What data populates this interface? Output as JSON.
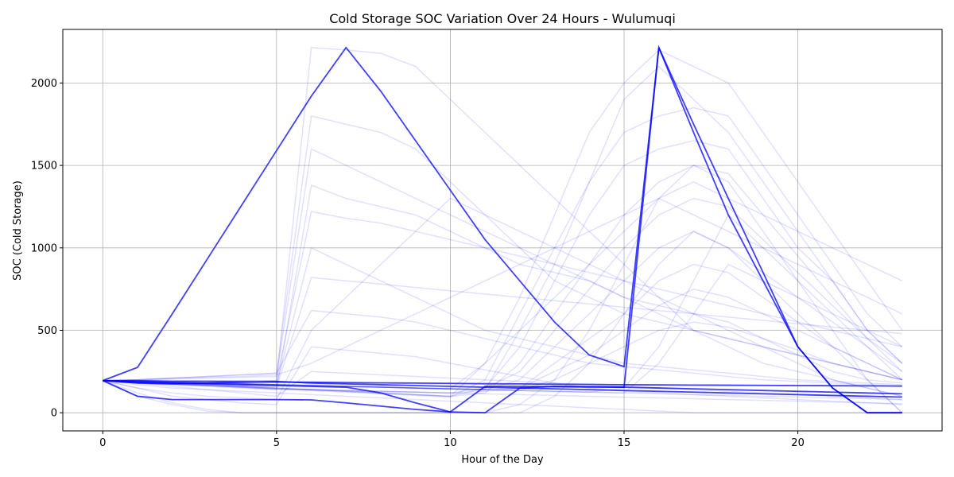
{
  "chart_data": {
    "type": "line",
    "title": "Cold Storage SOC Variation Over 24 Hours - Wulumuqi",
    "xlabel": "Hour of the Day",
    "ylabel": "SOC (Cold Storage)",
    "xlim": [
      -1.15,
      24.15
    ],
    "ylim": [
      -110,
      2325
    ],
    "xticks": [
      0,
      5,
      10,
      15,
      20
    ],
    "yticks": [
      0,
      500,
      1000,
      1500,
      2000
    ],
    "grid": true,
    "line_color": "#0000ff",
    "series_note_count": 300,
    "highlighted_series": [
      {
        "values": [
          195,
          275,
          600,
          930,
          1260,
          1590,
          1920,
          2215,
          1950,
          1650,
          1350,
          1050,
          800,
          550,
          350,
          280,
          2215,
          1700,
          1200,
          800,
          400,
          150,
          0,
          0
        ]
      },
      {
        "values": [
          195,
          195,
          190,
          190,
          188,
          186,
          185,
          183,
          181,
          180,
          178,
          176,
          175,
          173,
          172,
          170,
          169,
          168,
          167,
          166,
          165,
          164,
          163,
          162
        ]
      },
      {
        "values": [
          195,
          180,
          175,
          180,
          185,
          190,
          180,
          175,
          170,
          165,
          160,
          155,
          150,
          145,
          140,
          135,
          130,
          125,
          120,
          115,
          110,
          105,
          100,
          95
        ]
      },
      {
        "values": [
          195,
          185,
          180,
          175,
          170,
          165,
          160,
          155,
          120,
          60,
          5,
          160,
          160,
          158,
          156,
          155,
          2215,
          1750,
          1300,
          850,
          400,
          150,
          0,
          0
        ]
      },
      {
        "values": [
          195,
          100,
          80,
          80,
          80,
          80,
          78,
          60,
          40,
          20,
          5,
          0,
          150,
          160,
          158,
          155,
          150,
          145,
          140,
          135,
          130,
          125,
          120,
          115
        ]
      }
    ],
    "background_series": [
      {
        "values": [
          195,
          195,
          195,
          195,
          195,
          195,
          2215,
          2200,
          2180,
          2100,
          1900,
          1700,
          1500,
          1300,
          1100,
          900,
          700,
          500,
          400,
          300,
          250,
          200,
          150,
          100
        ]
      },
      {
        "values": [
          195,
          200,
          210,
          220,
          230,
          240,
          1800,
          1750,
          1700,
          1600,
          1400,
          1200,
          1100,
          1000,
          900,
          800,
          700,
          600,
          500,
          400,
          300,
          200,
          150,
          100
        ]
      },
      {
        "values": [
          195,
          180,
          170,
          160,
          150,
          140,
          1380,
          1300,
          1250,
          1200,
          1100,
          1000,
          900,
          850,
          800,
          700,
          650,
          600,
          550,
          450,
          350,
          250,
          200,
          180
        ]
      },
      {
        "values": [
          195,
          190,
          185,
          180,
          175,
          170,
          1000,
          900,
          800,
          700,
          600,
          500,
          450,
          400,
          350,
          300,
          280,
          260,
          240,
          220,
          200,
          190,
          180,
          170
        ]
      },
      {
        "values": [
          195,
          200,
          210,
          220,
          230,
          240,
          620,
          600,
          580,
          550,
          500,
          450,
          400,
          350,
          300,
          280,
          260,
          240,
          220,
          200,
          190,
          180,
          170,
          160
        ]
      },
      {
        "values": [
          195,
          150,
          100,
          80,
          60,
          50,
          400,
          380,
          360,
          340,
          300,
          260,
          220,
          180,
          150,
          130,
          120,
          110,
          100,
          90,
          80,
          70,
          60,
          50
        ]
      },
      {
        "values": [
          195,
          190,
          185,
          180,
          175,
          170,
          165,
          160,
          155,
          150,
          145,
          140,
          500,
          900,
          1400,
          1900,
          2100,
          1900,
          1700,
          1400,
          1100,
          800,
          500,
          300
        ]
      },
      {
        "values": [
          195,
          190,
          185,
          180,
          175,
          170,
          165,
          160,
          155,
          150,
          145,
          300,
          700,
          1200,
          1700,
          2000,
          2200,
          2100,
          2000,
          1700,
          1400,
          1100,
          800,
          500
        ]
      },
      {
        "values": [
          195,
          185,
          175,
          165,
          155,
          145,
          135,
          125,
          115,
          105,
          95,
          200,
          600,
          1000,
          1400,
          1700,
          1800,
          1850,
          1800,
          1500,
          1200,
          900,
          600,
          400
        ]
      },
      {
        "values": [
          195,
          190,
          180,
          170,
          160,
          150,
          140,
          130,
          120,
          110,
          100,
          150,
          400,
          800,
          1200,
          1500,
          1600,
          1650,
          1600,
          1300,
          1000,
          800,
          500,
          300
        ]
      },
      {
        "values": [
          195,
          190,
          180,
          170,
          160,
          150,
          140,
          130,
          120,
          110,
          100,
          120,
          300,
          600,
          900,
          1200,
          1400,
          1500,
          1450,
          1200,
          950,
          700,
          450,
          250
        ]
      },
      {
        "values": [
          195,
          185,
          175,
          165,
          155,
          145,
          140,
          135,
          130,
          125,
          120,
          150,
          250,
          500,
          750,
          1000,
          1200,
          1300,
          1250,
          1050,
          850,
          650,
          450,
          300
        ]
      },
      {
        "values": [
          195,
          190,
          185,
          180,
          175,
          170,
          165,
          160,
          155,
          150,
          145,
          140,
          200,
          400,
          600,
          800,
          1000,
          1100,
          1000,
          850,
          700,
          550,
          400,
          250
        ]
      },
      {
        "values": [
          195,
          190,
          185,
          180,
          175,
          170,
          165,
          160,
          155,
          150,
          145,
          140,
          150,
          300,
          450,
          600,
          800,
          900,
          850,
          700,
          550,
          400,
          300,
          200
        ]
      },
      {
        "values": [
          195,
          185,
          175,
          165,
          155,
          145,
          140,
          135,
          130,
          125,
          120,
          130,
          150,
          250,
          350,
          500,
          650,
          750,
          700,
          600,
          500,
          400,
          300,
          200
        ]
      },
      {
        "values": [
          195,
          190,
          185,
          180,
          175,
          170,
          165,
          160,
          155,
          150,
          145,
          140,
          135,
          200,
          300,
          400,
          500,
          550,
          520,
          450,
          380,
          300,
          250,
          200
        ]
      },
      {
        "values": [
          195,
          120,
          60,
          20,
          0,
          0,
          0,
          0,
          0,
          0,
          0,
          0,
          50,
          200,
          500,
          900,
          1300,
          1500,
          1400,
          1100,
          800,
          500,
          200,
          0
        ]
      },
      {
        "values": [
          195,
          100,
          50,
          10,
          0,
          0,
          0,
          0,
          0,
          0,
          0,
          0,
          0,
          100,
          300,
          600,
          900,
          1100,
          1000,
          800,
          600,
          400,
          200,
          0
        ]
      },
      {
        "values": [
          195,
          150,
          120,
          100,
          90,
          80,
          500,
          700,
          900,
          1100,
          1300,
          1200,
          1000,
          800,
          700,
          600,
          550,
          500,
          450,
          400,
          350,
          300,
          250,
          200
        ]
      },
      {
        "values": [
          195,
          200,
          205,
          210,
          215,
          220,
          1600,
          1500,
          1400,
          1300,
          1200,
          1100,
          1000,
          900,
          800,
          700,
          600,
          500,
          450,
          400,
          350,
          300,
          250,
          200
        ]
      },
      {
        "values": [
          195,
          195,
          195,
          195,
          195,
          195,
          1220,
          1180,
          1150,
          1100,
          1050,
          1000,
          950,
          900,
          850,
          800,
          750,
          700,
          650,
          600,
          550,
          500,
          450,
          400
        ]
      },
      {
        "values": [
          195,
          180,
          170,
          165,
          160,
          155,
          820,
          800,
          780,
          760,
          740,
          720,
          700,
          680,
          660,
          640,
          620,
          600,
          580,
          560,
          540,
          520,
          500,
          480
        ]
      },
      {
        "values": [
          195,
          190,
          185,
          180,
          175,
          170,
          165,
          160,
          155,
          150,
          145,
          140,
          135,
          130,
          125,
          120,
          115,
          110,
          105,
          100,
          95,
          90,
          85,
          80
        ]
      },
      {
        "values": [
          195,
          170,
          150,
          140,
          130,
          120,
          110,
          100,
          90,
          80,
          70,
          60,
          50,
          40,
          30,
          20,
          10,
          0,
          0,
          0,
          0,
          0,
          0,
          0
        ]
      },
      {
        "values": [
          195,
          190,
          180,
          170,
          160,
          150,
          140,
          130,
          120,
          110,
          100,
          300,
          500,
          700,
          900,
          1100,
          1300,
          1200,
          1100,
          1000,
          900,
          800,
          700,
          600
        ]
      },
      {
        "values": [
          195,
          200,
          210,
          215,
          220,
          230,
          300,
          400,
          500,
          600,
          700,
          800,
          900,
          1000,
          1100,
          1200,
          1300,
          1400,
          1300,
          1200,
          1100,
          1000,
          900,
          800
        ]
      },
      {
        "values": [
          195,
          185,
          175,
          165,
          155,
          145,
          140,
          135,
          130,
          125,
          120,
          115,
          110,
          105,
          100,
          95,
          90,
          85,
          80,
          75,
          70,
          65,
          60,
          55
        ]
      },
      {
        "values": [
          195,
          190,
          185,
          180,
          175,
          170,
          165,
          160,
          155,
          150,
          145,
          140,
          135,
          130,
          125,
          150,
          400,
          800,
          1200,
          1000,
          800,
          600,
          400,
          200
        ]
      },
      {
        "values": [
          195,
          190,
          185,
          180,
          175,
          170,
          165,
          160,
          155,
          150,
          145,
          140,
          135,
          130,
          125,
          120,
          300,
          600,
          900,
          800,
          700,
          600,
          500,
          400
        ]
      },
      {
        "values": [
          195,
          180,
          160,
          140,
          120,
          100,
          250,
          240,
          230,
          220,
          210,
          200,
          190,
          180,
          170,
          160,
          150,
          140,
          130,
          120,
          110,
          100,
          90,
          80
        ]
      }
    ]
  }
}
